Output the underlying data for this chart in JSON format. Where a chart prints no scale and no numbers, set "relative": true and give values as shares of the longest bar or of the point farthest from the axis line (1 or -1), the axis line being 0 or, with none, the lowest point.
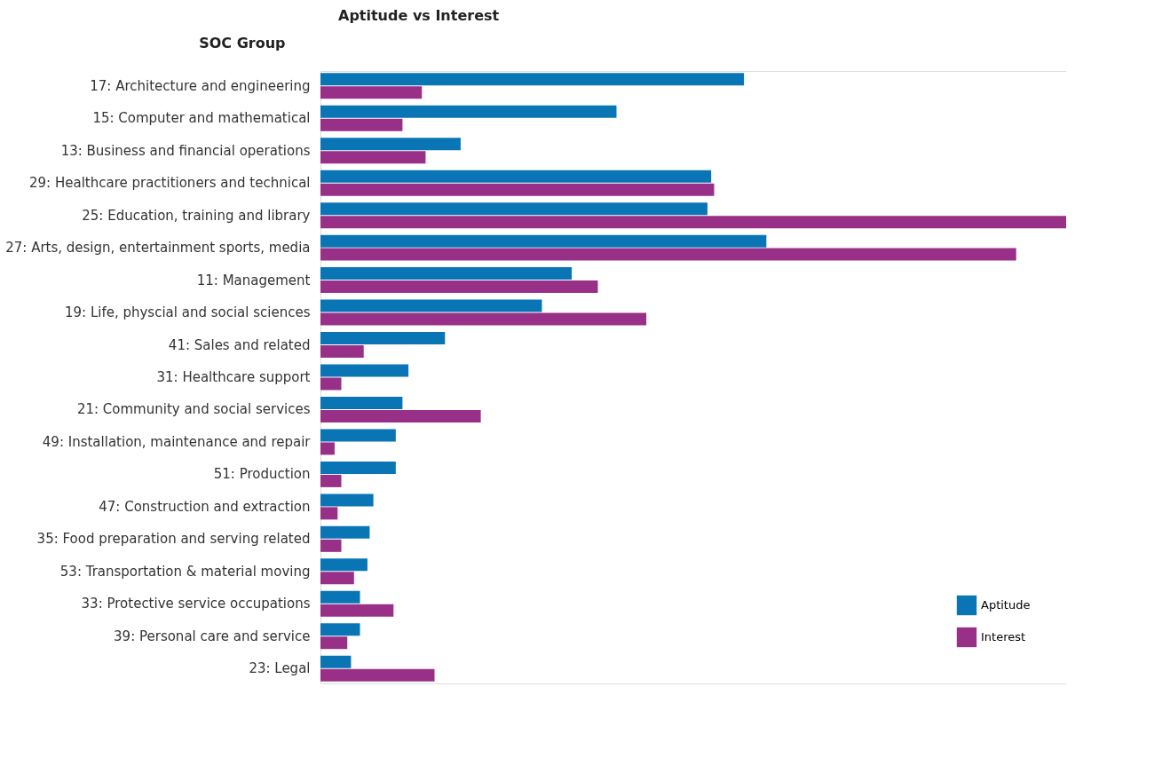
{
  "chart_data": {
    "type": "bar",
    "orientation": "horizontal",
    "relative": true,
    "title": "Aptitude vs Interest",
    "ylabel": "SOC Group",
    "legend": "bottom right",
    "categories": [
      "17: Architecture and engineering",
      "15: Computer and mathematical",
      "13: Business and financial operations",
      "29: Healthcare practitioners and technical",
      "25: Education, training and library",
      "27: Arts, design, entertainment sports, media",
      "11: Management",
      "19: Life, physcial and social sciences",
      "41: Sales and related",
      "31: Healthcare support",
      "21: Community and social services",
      "49: Installation, maintenance and repair",
      "51: Production",
      "47: Construction and extraction ",
      "35: Food preparation and serving related",
      "53: Transportation & material moving",
      "33: Protective service occupations",
      "39: Personal care and service",
      "23: Legal"
    ],
    "series": [
      {
        "name": "Aptitude",
        "color": "#0a75b5",
        "values": [
          0.568,
          0.397,
          0.188,
          0.524,
          0.519,
          0.598,
          0.337,
          0.297,
          0.167,
          0.118,
          0.11,
          0.101,
          0.101,
          0.071,
          0.066,
          0.063,
          0.053,
          0.053,
          0.041
        ]
      },
      {
        "name": "Interest",
        "color": "#993087",
        "values": [
          0.136,
          0.11,
          0.141,
          0.528,
          1,
          0.933,
          0.372,
          0.437,
          0.058,
          0.028,
          0.215,
          0.019,
          0.028,
          0.023,
          0.028,
          0.045,
          0.098,
          0.036,
          0.153
        ]
      }
    ]
  }
}
